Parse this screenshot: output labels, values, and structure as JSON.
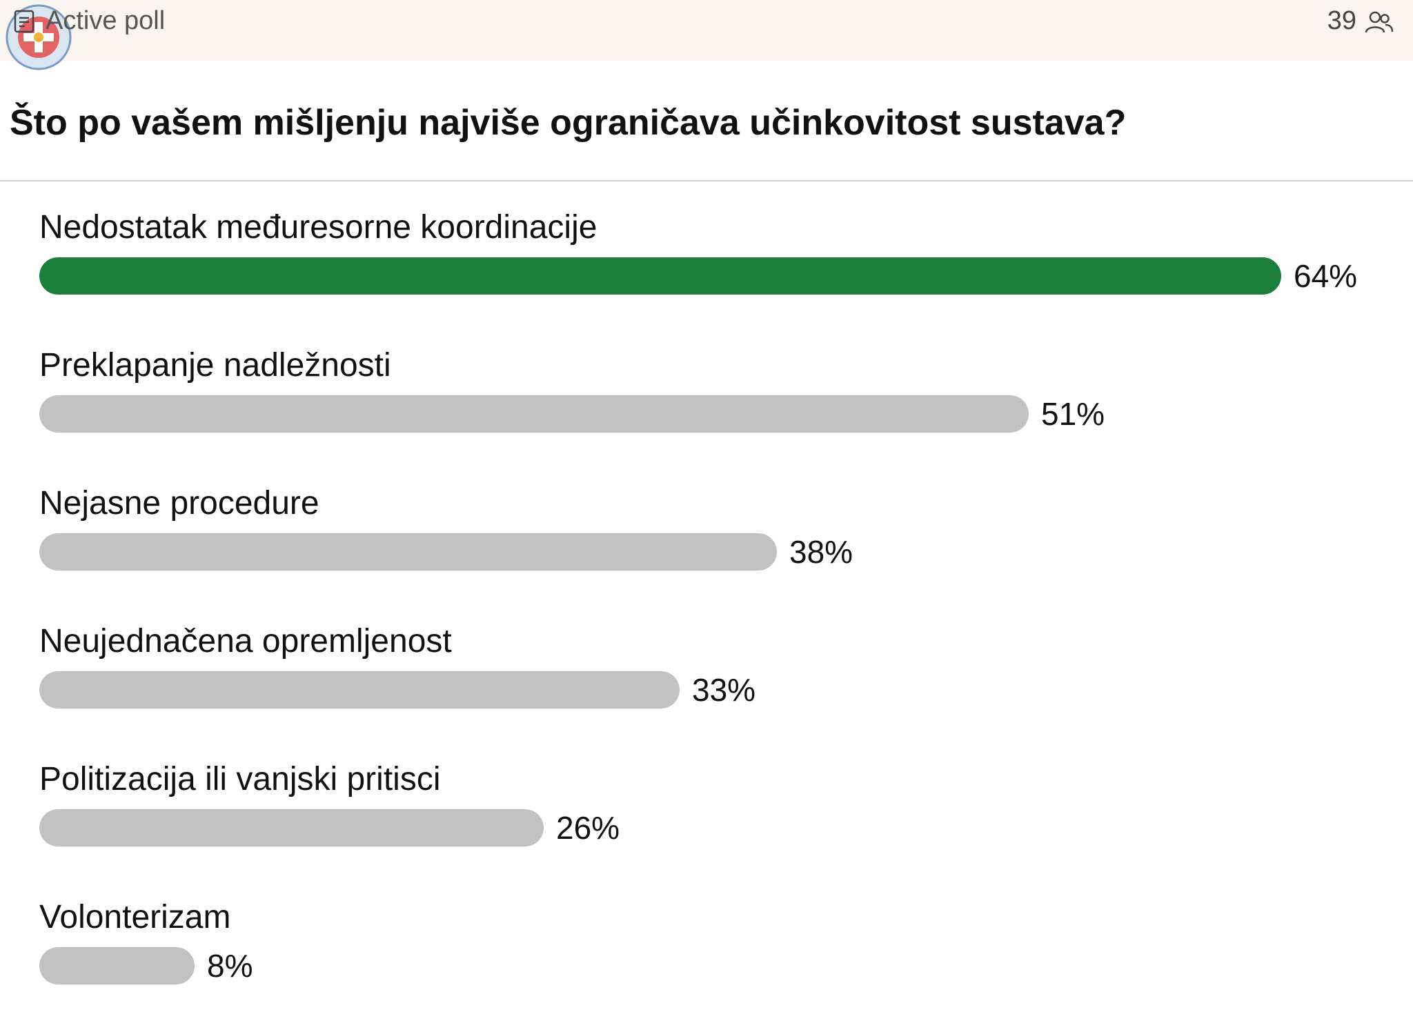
{
  "header": {
    "status": "Active poll",
    "voters": "39",
    "voters_icon": "people-icon",
    "poll_icon": "poll-icon",
    "logo_icon": "red-cross-logo-icon"
  },
  "poll": {
    "question": "Što po vašem mišljenju najviše ograničava učinkovitost sustava?",
    "bar_color_leading": "#1b7f3b",
    "bar_color_default": "#c1c1c1",
    "options": [
      {
        "label": "Nedostatak međuresorne koordinacije",
        "percent_label": "64%",
        "percent": 64
      },
      {
        "label": "Preklapanje nadležnosti",
        "percent_label": "51%",
        "percent": 51
      },
      {
        "label": "Nejasne procedure",
        "percent_label": "38%",
        "percent": 38
      },
      {
        "label": "Neujednačena opremljenost",
        "percent_label": "33%",
        "percent": 33
      },
      {
        "label": "Politizacija ili vanjski pritisci",
        "percent_label": "26%",
        "percent": 26
      },
      {
        "label": "Volonterizam",
        "percent_label": "8%",
        "percent": 8
      }
    ]
  }
}
